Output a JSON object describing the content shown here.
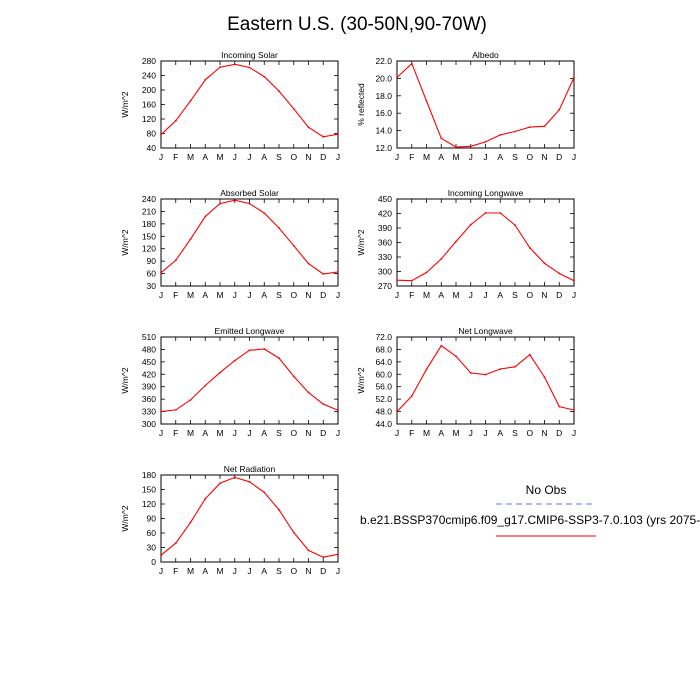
{
  "figure_title": "Eastern U.S. (30-50N,90-70W)",
  "colors": {
    "model_line": "#ff0000",
    "obs_line": "#6b6bff"
  },
  "legend": {
    "obs_label": "No Obs",
    "model_label": "b.e21.BSSP370cmip6.f09_g17.CMIP6-SSP3-7.0.103 (yrs 2075-"
  },
  "chart_data": [
    {
      "type": "line",
      "title": "Incoming Solar",
      "ylabel": "W/m^2",
      "ylim": [
        40,
        280
      ],
      "yticks": [
        "40",
        "80",
        "120",
        "160",
        "200",
        "240",
        "280"
      ],
      "categories": [
        "J",
        "F",
        "M",
        "A",
        "M",
        "J",
        "J",
        "A",
        "S",
        "O",
        "N",
        "D",
        "J"
      ],
      "series": [
        {
          "values": [
            77,
            115,
            170,
            228,
            263,
            271,
            262,
            237,
            197,
            148,
            97,
            71,
            78
          ]
        }
      ]
    },
    {
      "type": "line",
      "title": "Albedo",
      "ylabel": "% reflected",
      "ylim": [
        12,
        22
      ],
      "yticks": [
        "12.0",
        "14.0",
        "16.0",
        "18.0",
        "20.0",
        "22.0"
      ],
      "categories": [
        "J",
        "F",
        "M",
        "A",
        "M",
        "J",
        "J",
        "A",
        "S",
        "O",
        "N",
        "D",
        "J"
      ],
      "series": [
        {
          "values": [
            20.1,
            21.7,
            17.4,
            13.1,
            12.1,
            12.2,
            12.7,
            13.5,
            13.9,
            14.4,
            14.5,
            16.4,
            20.1
          ]
        }
      ]
    },
    {
      "type": "line",
      "title": "Absorbed Solar",
      "ylabel": "W/m^2",
      "ylim": [
        30,
        240
      ],
      "yticks": [
        "30",
        "60",
        "90",
        "120",
        "150",
        "180",
        "210",
        "240"
      ],
      "categories": [
        "J",
        "F",
        "M",
        "A",
        "M",
        "J",
        "J",
        "A",
        "S",
        "O",
        "N",
        "D",
        "J"
      ],
      "series": [
        {
          "values": [
            62,
            92,
            143,
            198,
            229,
            237,
            229,
            206,
            170,
            127,
            84,
            59,
            64
          ]
        }
      ]
    },
    {
      "type": "line",
      "title": "Incoming Longwave",
      "ylabel": "W/m^2",
      "ylim": [
        270,
        450
      ],
      "yticks": [
        "270",
        "300",
        "330",
        "360",
        "390",
        "420",
        "450"
      ],
      "categories": [
        "J",
        "F",
        "M",
        "A",
        "M",
        "J",
        "J",
        "A",
        "S",
        "O",
        "N",
        "D",
        "J"
      ],
      "series": [
        {
          "values": [
            282,
            281,
            298,
            326,
            362,
            397,
            421,
            421,
            396,
            349,
            317,
            296,
            281
          ]
        }
      ]
    },
    {
      "type": "line",
      "title": "Emitted Longwave",
      "ylabel": "W/m^2",
      "ylim": [
        300,
        510
      ],
      "yticks": [
        "300",
        "330",
        "360",
        "390",
        "420",
        "450",
        "480",
        "510"
      ],
      "categories": [
        "J",
        "F",
        "M",
        "A",
        "M",
        "J",
        "J",
        "A",
        "S",
        "O",
        "N",
        "D",
        "J"
      ],
      "series": [
        {
          "values": [
            330,
            334,
            358,
            393,
            424,
            453,
            478,
            481,
            459,
            415,
            376,
            348,
            333
          ]
        }
      ]
    },
    {
      "type": "line",
      "title": "Net Longwave",
      "ylabel": "W/m^2",
      "ylim": [
        44,
        72
      ],
      "yticks": [
        "44.0",
        "48.0",
        "52.0",
        "56.0",
        "60.0",
        "64.0",
        "68.0",
        "72.0"
      ],
      "categories": [
        "J",
        "F",
        "M",
        "A",
        "M",
        "J",
        "J",
        "A",
        "S",
        "O",
        "N",
        "D",
        "J"
      ],
      "series": [
        {
          "values": [
            48.0,
            53.0,
            61.6,
            69.2,
            65.8,
            60.4,
            59.9,
            61.7,
            62.4,
            66.3,
            59.1,
            49.6,
            48.5
          ]
        }
      ]
    },
    {
      "type": "line",
      "title": "Net Radiation",
      "ylabel": "W/m^2",
      "ylim": [
        0,
        180
      ],
      "yticks": [
        "0",
        "30",
        "60",
        "90",
        "120",
        "150",
        "180"
      ],
      "categories": [
        "J",
        "F",
        "M",
        "A",
        "M",
        "J",
        "J",
        "A",
        "S",
        "O",
        "N",
        "D",
        "J"
      ],
      "series": [
        {
          "values": [
            14,
            39,
            82,
            131,
            163,
            175,
            166,
            144,
            108,
            61,
            24,
            10,
            16
          ]
        }
      ]
    }
  ]
}
